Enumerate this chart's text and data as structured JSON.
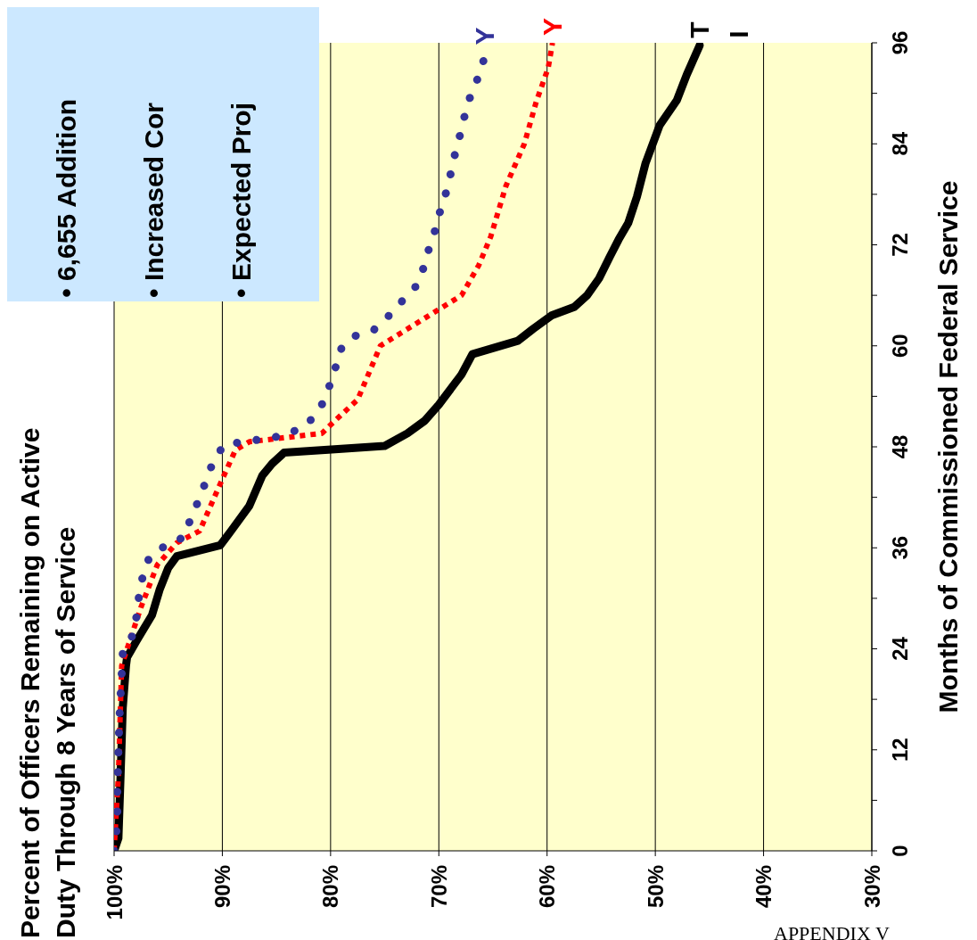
{
  "chart_data": {
    "type": "line",
    "title": "Percent of Officers Remaining on Active Duty Through 8 Years of Service",
    "ylabel": "Months of Commissioned Federal Service",
    "annotations": [
      "• 6,655 Addition",
      "• Increased Cor",
      "• Expected Proj",
      "APPENDIX V"
    ],
    "ylim": [
      0,
      96
    ],
    "yticks": [
      0,
      {
        "value": 6,
        "label": null
      },
      12,
      {
        "value": 18,
        "label": null
      },
      24,
      {
        "value": 30,
        "label": null
      },
      36,
      {
        "value": 42,
        "label": null
      },
      48,
      {
        "value": 54,
        "label": null
      },
      60,
      {
        "value": 66,
        "label": null
      },
      72,
      {
        "value": 78,
        "label": null
      },
      84,
      {
        "value": 90,
        "label": null
      },
      96
    ],
    "xlim": [
      100,
      30
    ],
    "xticks": [
      {
        "value": 100,
        "label": "100%"
      },
      {
        "value": 90,
        "label": "90%"
      },
      {
        "value": 80,
        "label": "80%"
      },
      {
        "value": 70,
        "label": "70%"
      },
      {
        "value": 60,
        "label": "60%"
      },
      {
        "value": 50,
        "label": "50%"
      },
      {
        "value": 40,
        "label": "40%"
      },
      {
        "value": 30,
        "label": "30%"
      }
    ],
    "grid": "x",
    "legend": false,
    "marker": "none",
    "series": [
      {
        "name": "T I",
        "color": "#000000",
        "line_style": "solid",
        "values": [
          0,
          1.5,
          9,
          17,
          22,
          23,
          25,
          28,
          31,
          33.6,
          35,
          36.3,
          38,
          41,
          44.6,
          46,
          47.3,
          48.1,
          49.6,
          51.1,
          53,
          56.6,
          59,
          60.6,
          62,
          63.6,
          64.6,
          66,
          68,
          70.6,
          72.6,
          74.6,
          77.7,
          81.7,
          86.2,
          89.2,
          92.2,
          95.7
        ],
        "x": [
          100,
          99.6,
          99.4,
          99.2,
          98.9,
          98.8,
          97.9,
          96.5,
          95.8,
          95,
          94.2,
          90.2,
          89.2,
          87.5,
          86.3,
          85.4,
          84.3,
          75,
          72.9,
          71.3,
          70,
          67.9,
          66.9,
          62.7,
          61.3,
          59.6,
          57.5,
          56.3,
          55.2,
          54.2,
          53.4,
          52.5,
          51.7,
          50.9,
          49.6,
          48,
          47.1,
          45.9
        ]
      },
      {
        "name": "Y",
        "color": "#ff0000",
        "line_style": "dashed",
        "values": [
          0,
          9,
          22,
          24,
          29,
          34,
          36.6,
          38,
          43,
          47.6,
          48.6,
          49.6,
          51.1,
          53.6,
          60,
          61.6,
          63.6,
          66,
          69.6,
          73,
          79,
          84,
          89,
          93,
          96
        ],
        "x": [
          100,
          99.6,
          99.3,
          98.8,
          97.5,
          96,
          94.2,
          92.1,
          90.4,
          88.8,
          87.5,
          80.8,
          79.6,
          77.5,
          75.4,
          73.4,
          70.9,
          67.9,
          66.3,
          65.2,
          63.8,
          62.1,
          61,
          59.9,
          59.5
        ]
      },
      {
        "name": "Y",
        "color": "#333399",
        "line_style": "dotted",
        "values": [
          0,
          2,
          4.5,
          7,
          12,
          16,
          21,
          23.5,
          25.6,
          28,
          30.3,
          33,
          35,
          36.3,
          37.3,
          39.6,
          41.9,
          44,
          46.4,
          48.3,
          48.6,
          49.4,
          50.8,
          52.4,
          54.9,
          57.1,
          59.4,
          61.1,
          61.9,
          63.6,
          65.3,
          67.1,
          69.3,
          71.6,
          73.9,
          76.4,
          78.7,
          81.1,
          83.4,
          85.7,
          88,
          90.4,
          92.6,
          94.9
        ],
        "x": [
          100,
          99.8,
          99.7,
          99.7,
          99.6,
          99.5,
          99.3,
          99.2,
          98.3,
          97.9,
          97.7,
          97.3,
          96.7,
          95.2,
          93.5,
          92.9,
          92.1,
          91.5,
          90.8,
          89.8,
          87.9,
          84,
          82.1,
          81,
          80.2,
          79.6,
          79.2,
          77.9,
          76,
          74.6,
          73.4,
          72.1,
          71.4,
          70.9,
          70.3,
          69.8,
          69.2,
          68.8,
          68.4,
          67.9,
          67.5,
          66.9,
          66.1,
          65.7
        ]
      }
    ]
  }
}
